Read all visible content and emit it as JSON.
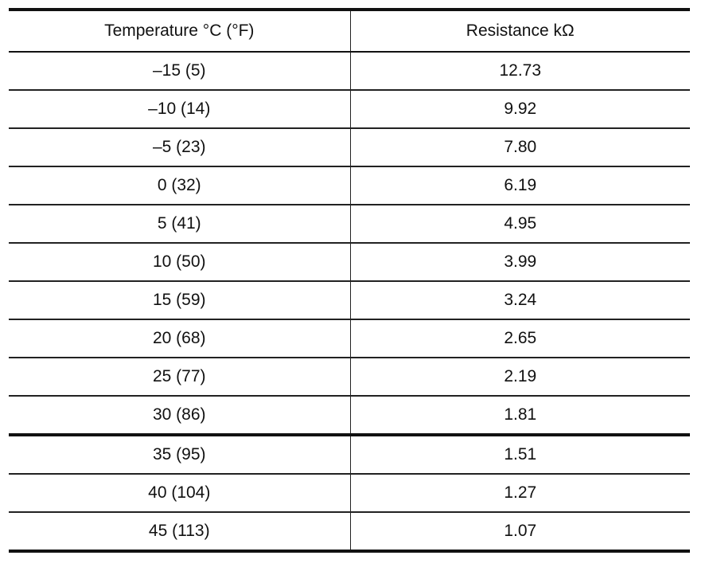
{
  "table": {
    "headers": {
      "temperature": "Temperature °C (°F)",
      "resistance": "Resistance kΩ"
    },
    "rows": [
      {
        "temperature": "–15 (5)",
        "resistance": "12.73"
      },
      {
        "temperature": "–10 (14)",
        "resistance": "9.92"
      },
      {
        "temperature": "–5 (23)",
        "resistance": "7.80"
      },
      {
        "temperature": "0 (32)",
        "resistance": "6.19"
      },
      {
        "temperature": "5 (41)",
        "resistance": "4.95"
      },
      {
        "temperature": "10 (50)",
        "resistance": "3.99"
      },
      {
        "temperature": "15 (59)",
        "resistance": "3.24"
      },
      {
        "temperature": "20 (68)",
        "resistance": "2.65"
      },
      {
        "temperature": "25 (77)",
        "resistance": "2.19"
      },
      {
        "temperature": "30 (86)",
        "resistance": "1.81"
      },
      {
        "temperature": "35 (95)",
        "resistance": "1.51"
      },
      {
        "temperature": "40 (104)",
        "resistance": "1.27"
      },
      {
        "temperature": "45 (113)",
        "resistance": "1.07"
      }
    ]
  }
}
